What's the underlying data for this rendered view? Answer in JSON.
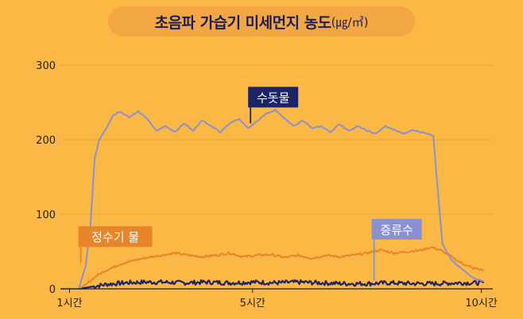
{
  "chart_data": {
    "type": "line",
    "title": "초음파 가습기 미세먼지 농도",
    "unit": "(㎍/㎥)",
    "ylim": [
      0,
      300
    ],
    "yticks": [
      "300",
      "200",
      "100",
      "0"
    ],
    "x_ticks": [
      {
        "label": "1시간",
        "x": 1
      },
      {
        "label": "5시간",
        "x": 5
      },
      {
        "label": "10시간",
        "x": 10
      }
    ],
    "xlim": [
      0.8,
      10.25
    ],
    "grid": true,
    "colors": {
      "background": "#fcb844",
      "tap": "#1d2466",
      "purifier": "#e8842a",
      "distilled": "#8b91cf",
      "grid": "#e9a33f",
      "axis": "#1a1f2e"
    },
    "series": [
      {
        "name": "수돗물",
        "label_at": {
          "x": 5.45,
          "y": 257
        },
        "values": [
          [
            0.8,
            0
          ],
          [
            1.2,
            0
          ],
          [
            1.35,
            30
          ],
          [
            1.45,
            80
          ],
          [
            1.55,
            175
          ],
          [
            1.65,
            200
          ],
          [
            1.8,
            215
          ],
          [
            1.95,
            232
          ],
          [
            2.1,
            238
          ],
          [
            2.3,
            230
          ],
          [
            2.5,
            238
          ],
          [
            2.7,
            228
          ],
          [
            2.9,
            212
          ],
          [
            3.1,
            218
          ],
          [
            3.3,
            210
          ],
          [
            3.5,
            222
          ],
          [
            3.7,
            212
          ],
          [
            3.9,
            226
          ],
          [
            4.1,
            218
          ],
          [
            4.3,
            210
          ],
          [
            4.5,
            222
          ],
          [
            4.7,
            228
          ],
          [
            4.9,
            215
          ],
          [
            5.1,
            225
          ],
          [
            5.3,
            235
          ],
          [
            5.5,
            240
          ],
          [
            5.7,
            228
          ],
          [
            5.9,
            218
          ],
          [
            6.1,
            226
          ],
          [
            6.3,
            215
          ],
          [
            6.5,
            218
          ],
          [
            6.7,
            210
          ],
          [
            6.9,
            221
          ],
          [
            7.1,
            212
          ],
          [
            7.3,
            218
          ],
          [
            7.5,
            212
          ],
          [
            7.7,
            208
          ],
          [
            7.9,
            218
          ],
          [
            8.1,
            213
          ],
          [
            8.3,
            208
          ],
          [
            8.5,
            213
          ],
          [
            8.7,
            210
          ],
          [
            8.85,
            208
          ],
          [
            8.95,
            205
          ],
          [
            9.05,
            130
          ],
          [
            9.15,
            60
          ],
          [
            9.35,
            38
          ],
          [
            9.6,
            25
          ],
          [
            9.85,
            14
          ],
          [
            10.05,
            10
          ]
        ]
      },
      {
        "name": "정수기 물",
        "label_at": {
          "x": 2.0,
          "y": 70
        },
        "values": [
          [
            1.2,
            0
          ],
          [
            1.4,
            8
          ],
          [
            1.6,
            18
          ],
          [
            1.8,
            25
          ],
          [
            2.1,
            33
          ],
          [
            2.4,
            38
          ],
          [
            2.7,
            42
          ],
          [
            3.0,
            45
          ],
          [
            3.3,
            48
          ],
          [
            3.6,
            45
          ],
          [
            3.9,
            43
          ],
          [
            4.2,
            45
          ],
          [
            4.5,
            48
          ],
          [
            4.8,
            43
          ],
          [
            5.1,
            45
          ],
          [
            5.4,
            46
          ],
          [
            5.7,
            42
          ],
          [
            6.0,
            45
          ],
          [
            6.3,
            41
          ],
          [
            6.6,
            45
          ],
          [
            6.9,
            43
          ],
          [
            7.2,
            45
          ],
          [
            7.5,
            48
          ],
          [
            7.8,
            52
          ],
          [
            8.1,
            48
          ],
          [
            8.4,
            50
          ],
          [
            8.7,
            52
          ],
          [
            8.9,
            56
          ],
          [
            9.1,
            52
          ],
          [
            9.3,
            45
          ],
          [
            9.55,
            35
          ],
          [
            9.8,
            28
          ],
          [
            10.05,
            25
          ]
        ]
      },
      {
        "name": "증류수",
        "label_at": {
          "x": 8.15,
          "y": 80
        },
        "values": [
          [
            1.2,
            0
          ],
          [
            1.5,
            3
          ],
          [
            1.8,
            6
          ],
          [
            2.2,
            8
          ],
          [
            2.6,
            9
          ],
          [
            3.0,
            9
          ],
          [
            3.5,
            8
          ],
          [
            4.0,
            9
          ],
          [
            4.5,
            8
          ],
          [
            5.0,
            9
          ],
          [
            5.5,
            8
          ],
          [
            6.0,
            9
          ],
          [
            6.5,
            8
          ],
          [
            7.0,
            7
          ],
          [
            7.5,
            7
          ],
          [
            8.0,
            8
          ],
          [
            8.5,
            7
          ],
          [
            9.0,
            7
          ],
          [
            9.5,
            8
          ],
          [
            10.05,
            8
          ]
        ]
      }
    ]
  }
}
